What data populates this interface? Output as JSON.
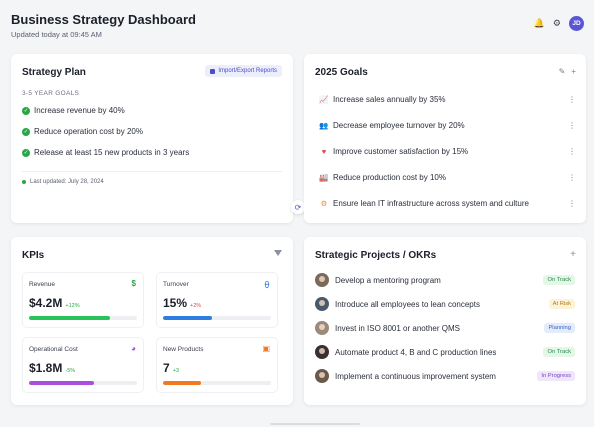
{
  "header": {
    "title": "Business Strategy Dashboard",
    "subtitle": "Updated today at 09:45 AM",
    "avatar_initials": "JD",
    "icons": [
      "bell-icon",
      "gear-icon"
    ]
  },
  "strategy_plan": {
    "title": "Strategy Plan",
    "import_label": "Import/Export Reports",
    "section_label": "3-5 YEAR GOALS",
    "goals": [
      "Increase revenue by 40%",
      "Reduce operation cost by 20%",
      "Release at least 15 new products in 3 years"
    ],
    "last_updated": "Last updated: July 28, 2024",
    "check_color": "#28a745"
  },
  "goals_2025": {
    "title": "2025 Goals",
    "items": [
      {
        "icon": "chart-line-icon",
        "color": "#4a7ad8",
        "text": "Increase sales annually by 35%"
      },
      {
        "icon": "users-icon",
        "color": "#8a55d6",
        "text": "Decrease employee turnover by 20%"
      },
      {
        "icon": "heart-icon",
        "color": "#e04848",
        "text": "Improve customer satisfaction by 15%"
      },
      {
        "icon": "factory-icon",
        "color": "#2eaa55",
        "text": "Reduce production cost by 10%"
      },
      {
        "icon": "gear-icon",
        "color": "#f08a24",
        "text": "Ensure lean IT infrastructure across system and culture"
      }
    ]
  },
  "kpis": {
    "title": "KPIs",
    "items": [
      {
        "label": "Revenue",
        "value": "$4.2M",
        "change": "+12%",
        "change_color": "#28a745",
        "icon": "dollar-icon",
        "icon_glyph": "$",
        "icon_color": "#28a745",
        "progress": 0.75,
        "bar_color": "#28c45a"
      },
      {
        "label": "Turnover",
        "value": "15%",
        "change": "+2%",
        "change_color": "#e04848",
        "icon": "people-icon",
        "icon_glyph": "ꂷ",
        "icon_color": "#2f7de0",
        "progress": 0.45,
        "bar_color": "#2f7de0"
      },
      {
        "label": "Operational Cost",
        "value": "$1.8M",
        "change": "-5%",
        "change_color": "#28a745",
        "icon": "pie-chart-icon",
        "icon_glyph": "◕",
        "icon_color": "#9a55e0",
        "progress": 0.6,
        "bar_color": "#a74fe0"
      },
      {
        "label": "New Products",
        "value": "7",
        "change": "+3",
        "change_color": "#28a745",
        "icon": "box-icon",
        "icon_glyph": "▣",
        "icon_color": "#f07a24",
        "progress": 0.35,
        "bar_color": "#f07a24"
      }
    ]
  },
  "projects": {
    "title": "Strategic Projects / OKRs",
    "items": [
      {
        "text": "Develop a mentoring program",
        "status": "On Track",
        "bg": "#e3f6e8",
        "fg": "#2a8a47",
        "avatar_color": "#7a6a5a"
      },
      {
        "text": "Introduce all employees to lean concepts",
        "status": "At Risk",
        "bg": "#fdf3d8",
        "fg": "#b07a10",
        "avatar_color": "#4a5a6a"
      },
      {
        "text": "Invest in ISO 8001 or another QMS",
        "status": "Planning",
        "bg": "#e4ecfb",
        "fg": "#3a62c4",
        "avatar_color": "#9a8a7a"
      },
      {
        "text": "Automate product 4, B and C production lines",
        "status": "On Track",
        "bg": "#e3f6e8",
        "fg": "#2a8a47",
        "avatar_color": "#3a3030"
      },
      {
        "text": "Implement a continuous improvement system",
        "status": "In Progress",
        "bg": "#efe6fb",
        "fg": "#7a45c4",
        "avatar_color": "#6a5a4a"
      }
    ]
  }
}
